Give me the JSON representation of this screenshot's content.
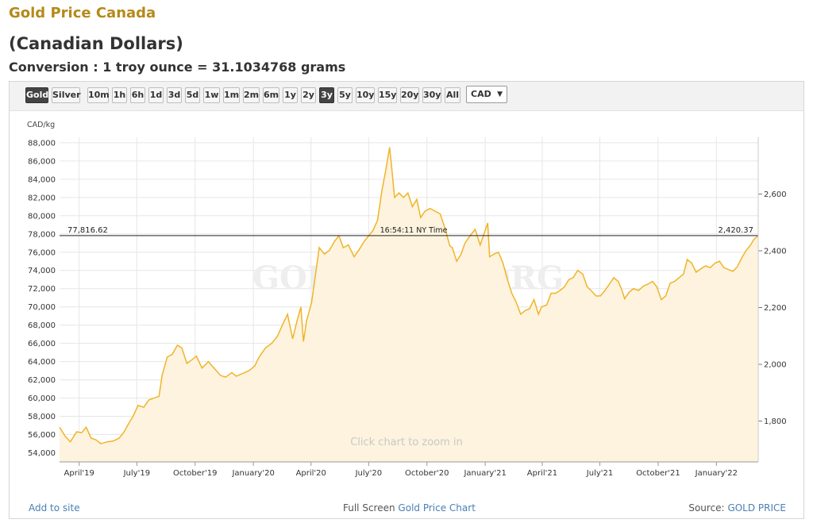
{
  "header": {
    "title": "Gold Price Canada",
    "subtitle": "(Canadian Dollars)",
    "conversion": "Conversion : 1 troy ounce = 31.1034768 grams"
  },
  "toolbar": {
    "metals": [
      {
        "label": "Gold",
        "active": true
      },
      {
        "label": "Silver",
        "active": false
      }
    ],
    "ranges": [
      {
        "label": "10m",
        "active": false
      },
      {
        "label": "1h",
        "active": false
      },
      {
        "label": "6h",
        "active": false
      },
      {
        "label": "1d",
        "active": false
      },
      {
        "label": "3d",
        "active": false
      },
      {
        "label": "5d",
        "active": false
      },
      {
        "label": "1w",
        "active": false
      },
      {
        "label": "1m",
        "active": false
      },
      {
        "label": "2m",
        "active": false
      },
      {
        "label": "6m",
        "active": false
      },
      {
        "label": "1y",
        "active": false
      },
      {
        "label": "2y",
        "active": false
      },
      {
        "label": "3y",
        "active": true
      },
      {
        "label": "5y",
        "active": false
      },
      {
        "label": "10y",
        "active": false
      },
      {
        "label": "15y",
        "active": false
      },
      {
        "label": "20y",
        "active": false
      },
      {
        "label": "30y",
        "active": false
      },
      {
        "label": "All",
        "active": false
      }
    ],
    "currency": "CAD",
    "currency_icon": "chevron-down-icon"
  },
  "chart_data": {
    "type": "area",
    "unit_label": "CAD/kg",
    "watermark": "GOLDPRICE.ORG",
    "zoom_hint": "Click chart to zoom in",
    "crosshair": {
      "left_value": "77,816.62",
      "right_value": "2,420.37",
      "time": "16:54:11 NY Time",
      "value": 77816.62
    },
    "ylim": [
      53000,
      88600
    ],
    "y_right_lim": [
      1656,
      2800
    ],
    "y_ticks": [
      54000,
      56000,
      58000,
      60000,
      62000,
      64000,
      66000,
      68000,
      70000,
      72000,
      74000,
      76000,
      78000,
      80000,
      82000,
      84000,
      86000,
      88000
    ],
    "y_tick_labels": [
      "54,000",
      "56,000",
      "58,000",
      "60,000",
      "62,000",
      "64,000",
      "66,000",
      "68,000",
      "70,000",
      "72,000",
      "74,000",
      "76,000",
      "78,000",
      "80,000",
      "82,000",
      "84,000",
      "86,000",
      "88,000"
    ],
    "y_right_ticks": [
      1800,
      2000,
      2200,
      2400,
      2600
    ],
    "y_right_tick_labels": [
      "1,800",
      "2,000",
      "2,200",
      "2,400",
      "2,600"
    ],
    "x_range": [
      "2019-03-01",
      "2022-03-08"
    ],
    "x_ticks": [
      {
        "date": "2019-04-01",
        "label": "April'19"
      },
      {
        "date": "2019-07-01",
        "label": "July'19"
      },
      {
        "date": "2019-10-01",
        "label": "October'19"
      },
      {
        "date": "2020-01-01",
        "label": "January'20"
      },
      {
        "date": "2020-04-01",
        "label": "April'20"
      },
      {
        "date": "2020-07-01",
        "label": "July'20"
      },
      {
        "date": "2020-10-01",
        "label": "October'20"
      },
      {
        "date": "2021-01-01",
        "label": "January'21"
      },
      {
        "date": "2021-04-01",
        "label": "April'21"
      },
      {
        "date": "2021-07-01",
        "label": "July'21"
      },
      {
        "date": "2021-10-01",
        "label": "October'21"
      },
      {
        "date": "2022-01-01",
        "label": "January'22"
      }
    ],
    "grid": true,
    "colors": {
      "line": "#f0b429",
      "fill": "#fdf3de"
    },
    "series": [
      {
        "x": [
          "2019-03-01",
          "2019-03-10",
          "2019-03-18",
          "2019-03-28",
          "2019-04-05",
          "2019-04-12",
          "2019-04-20",
          "2019-04-28",
          "2019-05-05",
          "2019-05-15",
          "2019-05-25",
          "2019-06-03",
          "2019-06-10",
          "2019-06-18",
          "2019-06-25",
          "2019-07-03",
          "2019-07-12",
          "2019-07-20",
          "2019-07-28",
          "2019-08-05",
          "2019-08-10",
          "2019-08-18",
          "2019-08-26",
          "2019-09-03",
          "2019-09-10",
          "2019-09-18",
          "2019-09-26",
          "2019-10-03",
          "2019-10-12",
          "2019-10-22",
          "2019-11-01",
          "2019-11-10",
          "2019-11-18",
          "2019-11-28",
          "2019-12-05",
          "2019-12-15",
          "2019-12-25",
          "2020-01-03",
          "2020-01-10",
          "2020-01-20",
          "2020-01-30",
          "2020-02-08",
          "2020-02-17",
          "2020-02-24",
          "2020-03-03",
          "2020-03-10",
          "2020-03-16",
          "2020-03-20",
          "2020-03-25",
          "2020-04-02",
          "2020-04-08",
          "2020-04-14",
          "2020-04-22",
          "2020-04-30",
          "2020-05-08",
          "2020-05-15",
          "2020-05-22",
          "2020-05-30",
          "2020-06-08",
          "2020-06-16",
          "2020-06-24",
          "2020-07-01",
          "2020-07-08",
          "2020-07-15",
          "2020-07-22",
          "2020-07-28",
          "2020-08-03",
          "2020-08-06",
          "2020-08-11",
          "2020-08-18",
          "2020-08-25",
          "2020-09-01",
          "2020-09-08",
          "2020-09-15",
          "2020-09-21",
          "2020-09-28",
          "2020-10-06",
          "2020-10-14",
          "2020-10-22",
          "2020-10-30",
          "2020-11-06",
          "2020-11-10",
          "2020-11-17",
          "2020-11-24",
          "2020-11-30",
          "2020-12-08",
          "2020-12-16",
          "2020-12-24",
          "2021-01-05",
          "2021-01-08",
          "2021-01-15",
          "2021-01-22",
          "2021-01-29",
          "2021-02-05",
          "2021-02-12",
          "2021-02-19",
          "2021-02-26",
          "2021-03-05",
          "2021-03-12",
          "2021-03-19",
          "2021-03-26",
          "2021-03-31",
          "2021-04-08",
          "2021-04-15",
          "2021-04-22",
          "2021-04-29",
          "2021-05-06",
          "2021-05-13",
          "2021-05-20",
          "2021-05-27",
          "2021-06-04",
          "2021-06-11",
          "2021-06-17",
          "2021-06-25",
          "2021-07-02",
          "2021-07-09",
          "2021-07-16",
          "2021-07-23",
          "2021-07-30",
          "2021-08-05",
          "2021-08-09",
          "2021-08-16",
          "2021-08-23",
          "2021-08-31",
          "2021-09-08",
          "2021-09-15",
          "2021-09-22",
          "2021-09-29",
          "2021-10-06",
          "2021-10-13",
          "2021-10-20",
          "2021-10-27",
          "2021-11-03",
          "2021-11-10",
          "2021-11-16",
          "2021-11-23",
          "2021-11-30",
          "2021-12-08",
          "2021-12-15",
          "2021-12-22",
          "2021-12-30",
          "2022-01-06",
          "2022-01-13",
          "2022-01-20",
          "2022-01-27",
          "2022-02-03",
          "2022-02-10",
          "2022-02-17",
          "2022-02-24",
          "2022-03-01",
          "2022-03-08"
        ],
        "y": [
          56800,
          55800,
          55200,
          56300,
          56200,
          56800,
          55600,
          55400,
          55000,
          55200,
          55300,
          55600,
          56200,
          57200,
          58000,
          59200,
          59000,
          59800,
          60000,
          60200,
          62500,
          64500,
          64800,
          65800,
          65500,
          63800,
          64200,
          64600,
          63300,
          64000,
          63200,
          62500,
          62300,
          62800,
          62400,
          62700,
          63000,
          63500,
          64500,
          65500,
          66000,
          66800,
          68200,
          69200,
          66500,
          68500,
          70000,
          66200,
          68500,
          70500,
          73500,
          76500,
          75800,
          76200,
          77200,
          77800,
          76500,
          76800,
          75500,
          76300,
          77200,
          77800,
          78400,
          79500,
          82800,
          85000,
          87500,
          85500,
          82000,
          82500,
          82000,
          82500,
          81000,
          81800,
          79800,
          80500,
          80800,
          80500,
          80200,
          78500,
          76700,
          76500,
          75000,
          75800,
          77000,
          77800,
          78500,
          76800,
          79200,
          75500,
          75800,
          76000,
          74800,
          73000,
          71500,
          70500,
          69200,
          69600,
          69800,
          70800,
          69200,
          70000,
          70200,
          71500,
          71500,
          71800,
          72200,
          73000,
          73200,
          74000,
          73600,
          72200,
          71800,
          71200,
          71200,
          71800,
          72500,
          73200,
          72800,
          71800,
          70900,
          71600,
          72000,
          71800,
          72300,
          72500,
          72800,
          72200,
          70800,
          71200,
          72600,
          72800,
          73200,
          73600,
          75200,
          74800,
          73800,
          74200,
          74500,
          74300,
          74800,
          75000,
          74300,
          74100,
          73900,
          74400,
          75400,
          76200,
          76800,
          77400,
          77816.62
        ]
      }
    ]
  },
  "footer": {
    "add_link": "Add to site",
    "fullscreen_text": "Full Screen",
    "fullscreen_link": "Gold Price Chart",
    "source_text": "Source:",
    "source_link": "GOLD PRICE"
  }
}
